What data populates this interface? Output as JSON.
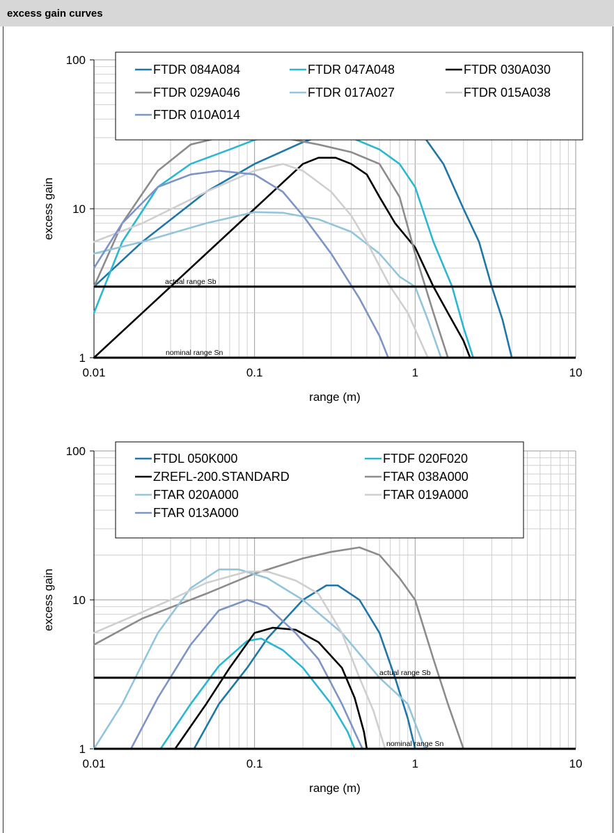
{
  "header": {
    "title": "excess gain curves"
  },
  "chart_data": [
    {
      "type": "line",
      "xscale": "log",
      "yscale": "log",
      "xlim": [
        0.01,
        10
      ],
      "ylim": [
        1,
        100
      ],
      "xlabel": "range (m)",
      "ylabel": "excess gain",
      "x_ticks": [
        "0.01",
        "0.1",
        "1",
        "10"
      ],
      "y_ticks": [
        "1",
        "10",
        "100"
      ],
      "grid": true,
      "legend_position": "top",
      "reference_lines": [
        {
          "label": "actual range Sb",
          "y": 3
        },
        {
          "label": "nominal range Sn",
          "y": 1
        }
      ],
      "series": [
        {
          "name": "FTDR 084A084",
          "color": "#1f77a8",
          "points": [
            [
              0.01,
              3
            ],
            [
              0.02,
              6
            ],
            [
              0.05,
              13
            ],
            [
              0.1,
              20
            ],
            [
              0.2,
              28
            ],
            [
              0.4,
              36
            ],
            [
              0.65,
              40
            ],
            [
              0.8,
              38
            ],
            [
              1.1,
              32
            ],
            [
              1.5,
              20
            ],
            [
              2.0,
              10
            ],
            [
              2.5,
              6
            ],
            [
              3.0,
              3
            ],
            [
              3.5,
              1.8
            ],
            [
              4.0,
              1
            ]
          ]
        },
        {
          "name": "FTDR 047A048",
          "color": "#2ab8d0",
          "points": [
            [
              0.01,
              2
            ],
            [
              0.015,
              6
            ],
            [
              0.025,
              14
            ],
            [
              0.04,
              20
            ],
            [
              0.07,
              25
            ],
            [
              0.1,
              29
            ],
            [
              0.15,
              32
            ],
            [
              0.25,
              33
            ],
            [
              0.4,
              30
            ],
            [
              0.6,
              25
            ],
            [
              0.8,
              20
            ],
            [
              1.0,
              14
            ],
            [
              1.3,
              6
            ],
            [
              1.7,
              3
            ],
            [
              2.0,
              1.6
            ],
            [
              2.3,
              1
            ]
          ]
        },
        {
          "name": "FTDR 030A030",
          "color": "#000000",
          "points": [
            [
              0.01,
              1
            ],
            [
              0.03,
              3
            ],
            [
              0.1,
              10
            ],
            [
              0.2,
              20
            ],
            [
              0.25,
              22
            ],
            [
              0.32,
              22
            ],
            [
              0.4,
              20
            ],
            [
              0.5,
              17
            ],
            [
              0.6,
              12
            ],
            [
              0.75,
              8
            ],
            [
              1.0,
              5.5
            ],
            [
              1.3,
              3
            ],
            [
              1.6,
              2
            ],
            [
              2.0,
              1.3
            ],
            [
              2.2,
              1
            ]
          ]
        },
        {
          "name": "FTDR 029A046",
          "color": "#8c8c8c",
          "points": [
            [
              0.01,
              3
            ],
            [
              0.015,
              8
            ],
            [
              0.025,
              18
            ],
            [
              0.04,
              27
            ],
            [
              0.06,
              30
            ],
            [
              0.1,
              30
            ],
            [
              0.15,
              30
            ],
            [
              0.25,
              27
            ],
            [
              0.4,
              24
            ],
            [
              0.6,
              20
            ],
            [
              0.8,
              12
            ],
            [
              1.0,
              5
            ],
            [
              1.3,
              2
            ],
            [
              1.6,
              1
            ]
          ]
        },
        {
          "name": "FTDR 017A027",
          "color": "#92c5dc",
          "points": [
            [
              0.01,
              5
            ],
            [
              0.02,
              6
            ],
            [
              0.05,
              8
            ],
            [
              0.1,
              9.5
            ],
            [
              0.15,
              9.4
            ],
            [
              0.25,
              8.5
            ],
            [
              0.4,
              7
            ],
            [
              0.6,
              5
            ],
            [
              0.8,
              3.5
            ],
            [
              1.0,
              3
            ],
            [
              1.2,
              1.8
            ],
            [
              1.45,
              1
            ]
          ]
        },
        {
          "name": "FTDR 015A038",
          "color": "#cfcfcf",
          "points": [
            [
              0.01,
              6
            ],
            [
              0.02,
              8
            ],
            [
              0.05,
              13
            ],
            [
              0.1,
              18
            ],
            [
              0.15,
              20
            ],
            [
              0.2,
              18
            ],
            [
              0.3,
              13
            ],
            [
              0.4,
              9
            ],
            [
              0.5,
              6
            ],
            [
              0.7,
              3
            ],
            [
              0.9,
              2
            ],
            [
              1.2,
              1
            ]
          ]
        },
        {
          "name": "FTDR 010A014",
          "color": "#7d94c6",
          "points": [
            [
              0.01,
              4
            ],
            [
              0.015,
              8
            ],
            [
              0.025,
              14
            ],
            [
              0.04,
              17
            ],
            [
              0.06,
              18
            ],
            [
              0.1,
              17
            ],
            [
              0.15,
              13
            ],
            [
              0.2,
              9
            ],
            [
              0.3,
              5
            ],
            [
              0.45,
              2.5
            ],
            [
              0.6,
              1.4
            ],
            [
              0.68,
              1
            ]
          ]
        }
      ]
    },
    {
      "type": "line",
      "xscale": "log",
      "yscale": "log",
      "xlim": [
        0.01,
        10
      ],
      "ylim": [
        1,
        100
      ],
      "xlabel": "range (m)",
      "ylabel": "excess gain",
      "x_ticks": [
        "0.01",
        "0.1",
        "1",
        "10"
      ],
      "y_ticks": [
        "1",
        "10",
        "100"
      ],
      "grid": true,
      "legend_position": "top",
      "reference_lines": [
        {
          "label": "actual range Sb",
          "y": 3
        },
        {
          "label": "nominal range Sn",
          "y": 1
        }
      ],
      "series": [
        {
          "name": "FTDL 050K000",
          "color": "#1f77a8",
          "points": [
            [
              0.042,
              1
            ],
            [
              0.06,
              2
            ],
            [
              0.09,
              3.5
            ],
            [
              0.12,
              5.5
            ],
            [
              0.2,
              10
            ],
            [
              0.28,
              12.5
            ],
            [
              0.33,
              12.5
            ],
            [
              0.45,
              10
            ],
            [
              0.6,
              6
            ],
            [
              0.75,
              3
            ],
            [
              0.9,
              1.6
            ],
            [
              1.0,
              1
            ]
          ]
        },
        {
          "name": "FTDF 020F020",
          "color": "#2ab8d0",
          "points": [
            [
              0.026,
              1
            ],
            [
              0.04,
              2
            ],
            [
              0.06,
              3.6
            ],
            [
              0.09,
              5.3
            ],
            [
              0.11,
              5.5
            ],
            [
              0.15,
              4.6
            ],
            [
              0.2,
              3.5
            ],
            [
              0.3,
              2
            ],
            [
              0.38,
              1.3
            ],
            [
              0.42,
              1
            ]
          ]
        },
        {
          "name": "ZREFL-200.STANDARD",
          "color": "#000000",
          "points": [
            [
              0.032,
              1
            ],
            [
              0.05,
              2
            ],
            [
              0.07,
              3.5
            ],
            [
              0.1,
              6
            ],
            [
              0.13,
              6.5
            ],
            [
              0.18,
              6.3
            ],
            [
              0.25,
              5.2
            ],
            [
              0.35,
              3.5
            ],
            [
              0.42,
              2.2
            ],
            [
              0.48,
              1.3
            ],
            [
              0.5,
              1
            ]
          ]
        },
        {
          "name": "FTAR 038A000",
          "color": "#8c8c8c",
          "points": [
            [
              0.01,
              5
            ],
            [
              0.02,
              7.5
            ],
            [
              0.05,
              11
            ],
            [
              0.1,
              15
            ],
            [
              0.2,
              19
            ],
            [
              0.3,
              21
            ],
            [
              0.45,
              22.5
            ],
            [
              0.6,
              20
            ],
            [
              0.8,
              14
            ],
            [
              1.0,
              10
            ],
            [
              1.3,
              4
            ],
            [
              1.6,
              2
            ],
            [
              2.0,
              1
            ]
          ]
        },
        {
          "name": "FTAR 020A000",
          "color": "#92c5dc",
          "points": [
            [
              0.01,
              1
            ],
            [
              0.015,
              2
            ],
            [
              0.025,
              6
            ],
            [
              0.04,
              12
            ],
            [
              0.06,
              16
            ],
            [
              0.08,
              16
            ],
            [
              0.12,
              14
            ],
            [
              0.2,
              10
            ],
            [
              0.35,
              6
            ],
            [
              0.6,
              3
            ],
            [
              0.9,
              2
            ],
            [
              1.15,
              1
            ]
          ]
        },
        {
          "name": "FTAR 019A000",
          "color": "#cfcfcf",
          "points": [
            [
              0.01,
              6
            ],
            [
              0.03,
              10
            ],
            [
              0.05,
              13
            ],
            [
              0.09,
              15.5
            ],
            [
              0.12,
              15.5
            ],
            [
              0.18,
              13.5
            ],
            [
              0.25,
              11
            ],
            [
              0.35,
              6
            ],
            [
              0.45,
              3
            ],
            [
              0.55,
              1.8
            ],
            [
              0.65,
              1
            ]
          ]
        },
        {
          "name": "FTAR 013A000",
          "color": "#7d94c6",
          "points": [
            [
              0.017,
              1
            ],
            [
              0.025,
              2.2
            ],
            [
              0.04,
              5
            ],
            [
              0.06,
              8.5
            ],
            [
              0.09,
              10
            ],
            [
              0.12,
              9
            ],
            [
              0.18,
              6
            ],
            [
              0.25,
              4
            ],
            [
              0.35,
              2
            ],
            [
              0.42,
              1.3
            ],
            [
              0.47,
              1
            ]
          ]
        }
      ]
    }
  ]
}
